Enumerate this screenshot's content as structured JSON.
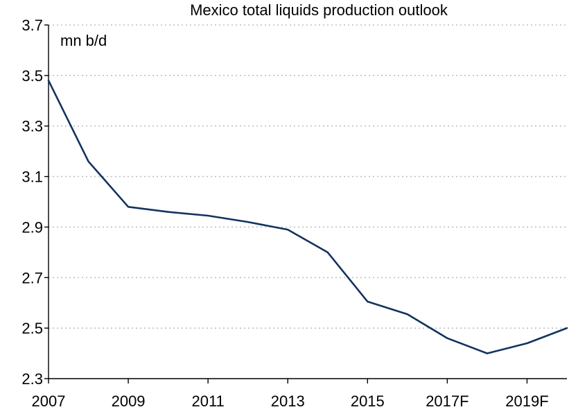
{
  "chart_data": {
    "type": "line",
    "title": "Mexico total liquids production outlook",
    "unit_label": "mn b/d",
    "xlabel": "",
    "ylabel": "",
    "x": [
      "2007",
      "2008",
      "2009",
      "2010",
      "2011",
      "2012",
      "2013",
      "2014",
      "2015",
      "2016",
      "2017F",
      "2018F",
      "2019F",
      "2020F"
    ],
    "x_tick_labels": [
      "2007",
      "",
      "2009",
      "",
      "2011",
      "",
      "2013",
      "",
      "2015",
      "",
      "2017F",
      "",
      "2019F",
      ""
    ],
    "series": [
      {
        "values": [
          3.48,
          3.16,
          2.98,
          2.96,
          2.945,
          2.92,
          2.89,
          2.8,
          2.605,
          2.555,
          2.46,
          2.4,
          2.44,
          2.5
        ]
      }
    ],
    "ylim": [
      2.3,
      3.7
    ],
    "yticks": [
      2.3,
      2.5,
      2.7,
      2.9,
      3.1,
      3.3,
      3.5,
      3.7
    ],
    "y_tick_labels": [
      "2.3",
      "2.5",
      "2.7",
      "2.9",
      "3.1",
      "3.3",
      "3.5",
      "3.7"
    ],
    "grid": "horizontal-dotted",
    "line_color": "#13335f",
    "grid_color": "#bfbfbf"
  }
}
